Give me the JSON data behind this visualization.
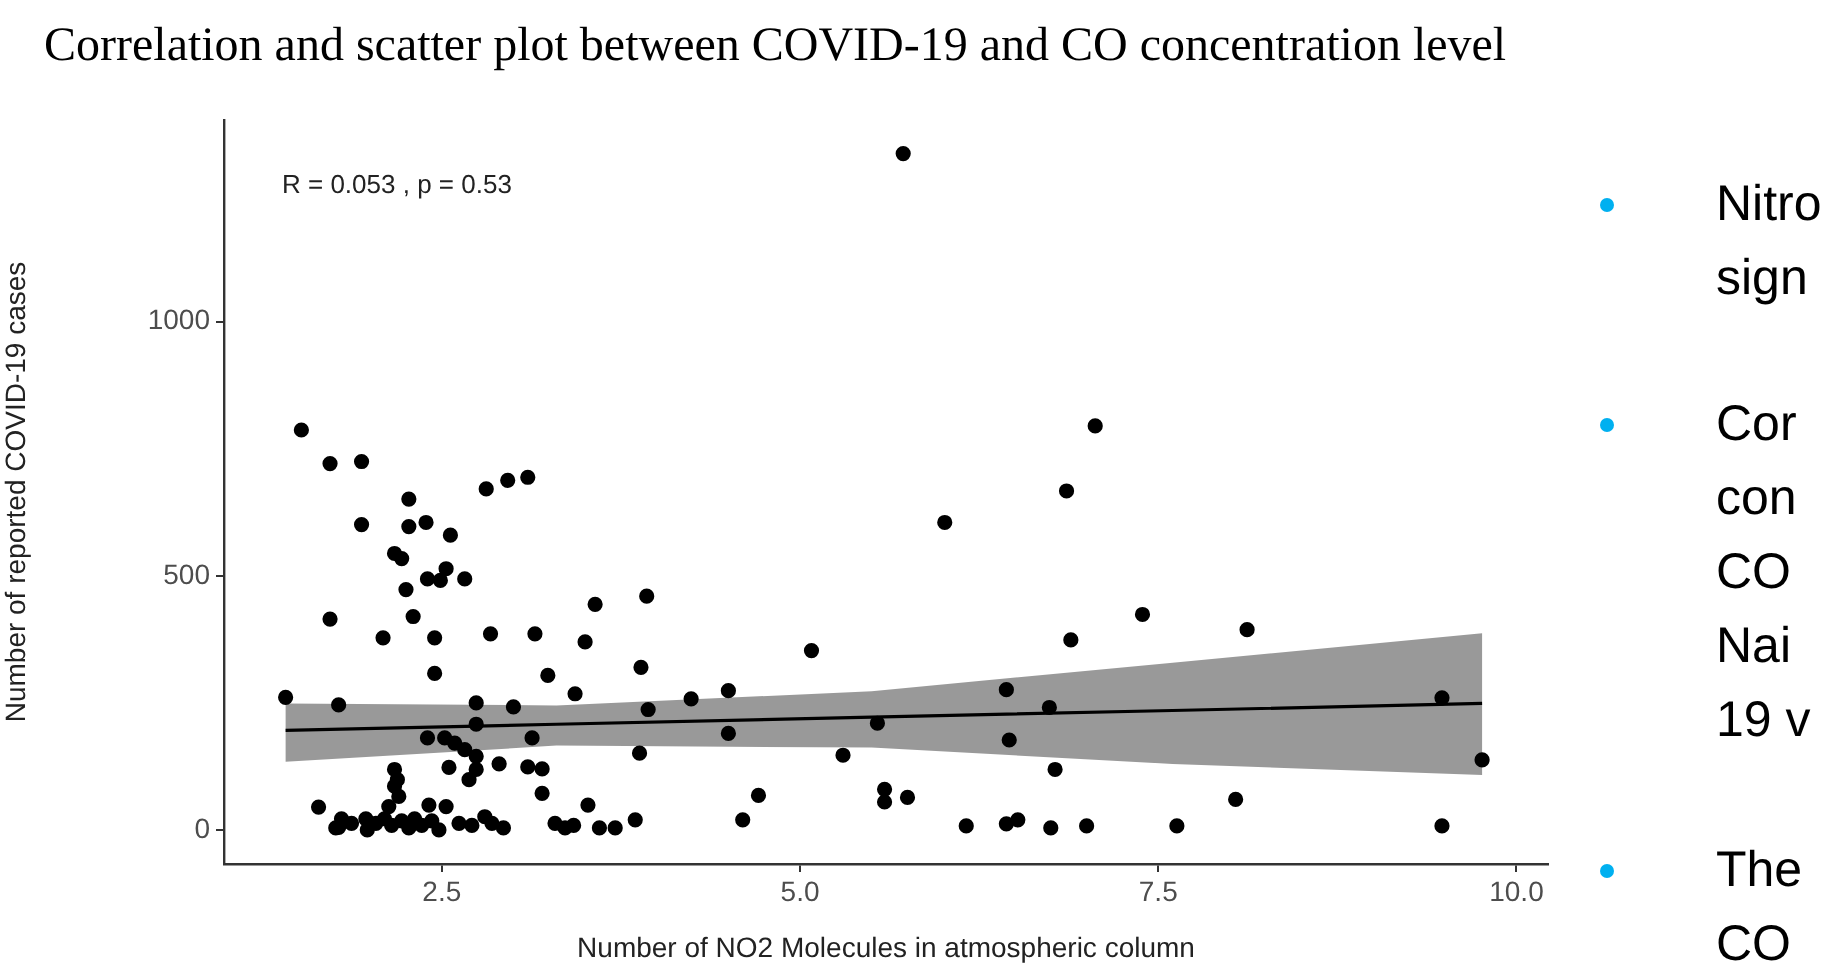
{
  "chart_data": {
    "type": "scatter",
    "title": "Correlation and scatter plot between COVID-19 and CO concentration level",
    "xlabel": "Number of NO2 Molecules in atmospheric column",
    "ylabel": "Number of reported COVID-19 cases",
    "xlim": [
      0.98,
      10.22
    ],
    "ylim": [
      -67,
      1397
    ],
    "xticks": [
      2.5,
      {
        "value": 5,
        "label": "5.0"
      },
      7.5,
      {
        "value": 10,
        "label": "10.0"
      }
    ],
    "yticks": [
      0,
      500,
      1000
    ],
    "grid": false,
    "annotations": [
      "R = 0.053 , p = 0.53",
      "Nitro\nsign",
      "Cor\ncon\nCO\nNai\n19 v",
      "The\nCO"
    ],
    "series": [
      {
        "marker": "circle",
        "color": "#000000",
        "x": [
          1.52,
          1.41,
          1.72,
          1.94,
          1.94,
          1.72,
          1.78,
          1.64,
          2.27,
          2.27,
          2.39,
          2.56,
          2.17,
          2.22,
          2.4,
          2.49,
          2.53,
          2.66,
          2.25,
          2.3,
          2.09,
          2.45,
          2.45,
          2.81,
          2.96,
          3.1,
          2.84,
          3.15,
          3.5,
          3.57,
          3.93,
          3.24,
          3.89,
          3.43,
          4.24,
          4.5,
          5.08,
          2.74,
          3.0,
          3.94,
          2.74,
          4.5,
          3.13,
          2.4,
          2.52,
          2.59,
          2.66,
          2.74,
          3.88,
          2.9,
          2.55,
          2.74,
          3.1,
          3.2,
          2.17,
          2.19,
          2.69,
          3.2,
          5.3,
          4.71,
          4.6,
          3.52,
          3.85,
          3.6,
          3.71,
          3.29,
          3.36,
          3.42,
          2.41,
          2.53,
          2.17,
          2.2,
          2.13,
          1.76,
          1.8,
          1.87,
          1.97,
          1.98,
          2.04,
          2.1,
          2.15,
          2.22,
          2.27,
          2.31,
          2.36,
          2.43,
          2.48,
          2.62,
          2.71,
          2.8,
          2.85,
          2.93,
          1.78,
          5.72,
          7.06,
          6.86,
          6.01,
          7.39,
          6.89,
          8.12,
          6.44,
          6.74,
          5.54,
          6.46,
          9.48,
          9.76,
          6.78,
          5.59,
          5.59,
          5.75,
          8.04,
          6.16,
          6.44,
          6.52,
          6.75,
          7.0,
          7.63,
          9.48
        ],
        "values": [
          787,
          261,
          721,
          725,
          601,
          415,
          246,
          45,
          651,
          597,
          605,
          580,
          544,
          534,
          494,
          491,
          514,
          494,
          473,
          420,
          378,
          378,
          308,
          671,
          688,
          694,
          386,
          386,
          370,
          444,
          460,
          304,
          320,
          268,
          258,
          274,
          353,
          250,
          242,
          237,
          208,
          190,
          181,
          181,
          181,
          171,
          158,
          145,
          151,
          130,
          123,
          119,
          124,
          120,
          119,
          99,
          99,
          72,
          147,
          68,
          20,
          49,
          20,
          4,
          4,
          13,
          4,
          9,
          49,
          46,
          86,
          66,
          46,
          4,
          22,
          13,
          22,
          0,
          13,
          22,
          9,
          18,
          4,
          22,
          9,
          18,
          0,
          13,
          9,
          26,
          13,
          4,
          5,
          1331,
          795,
          667,
          605,
          424,
          374,
          394,
          276,
          241,
          210,
          177,
          260,
          138,
          119,
          80,
          55,
          64,
          60,
          8,
          12,
          20,
          4,
          8,
          8,
          8
        ]
      },
      {
        "type": "line",
        "marker": "none",
        "color": "#000000",
        "x": [
          1.41,
          3.3,
          5.5,
          7.6,
          9.76
        ],
        "values": [
          196,
          208,
          222,
          235,
          249
        ],
        "lower": [
          134,
          166,
          162,
          130,
          108
        ],
        "upper": [
          249,
          245,
          273,
          329,
          387
        ]
      }
    ]
  }
}
